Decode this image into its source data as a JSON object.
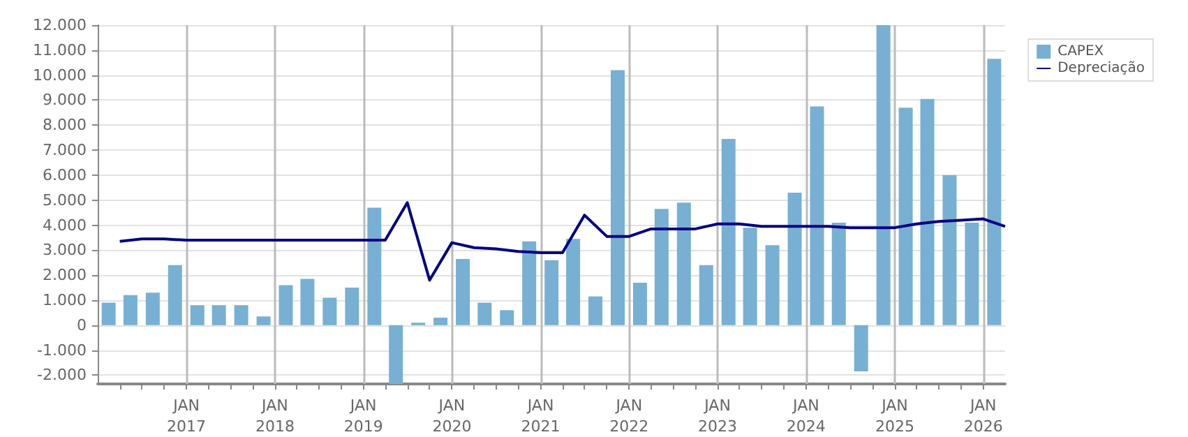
{
  "chart_data": {
    "type": "bar",
    "x": [
      "2016-02-15",
      "2016-05-15",
      "2016-08-15",
      "2016-11-15",
      "2017-02-15",
      "2017-05-15",
      "2017-08-15",
      "2017-11-15",
      "2018-02-15",
      "2018-05-15",
      "2018-08-15",
      "2018-11-15",
      "2019-02-15",
      "2019-05-15",
      "2019-08-15",
      "2019-11-15",
      "2020-02-15",
      "2020-05-15",
      "2020-08-15",
      "2020-11-15",
      "2021-02-15",
      "2021-05-15",
      "2021-08-15",
      "2021-11-15",
      "2022-02-15",
      "2022-05-15",
      "2022-08-15",
      "2022-11-15",
      "2023-02-15",
      "2023-05-15",
      "2023-08-15",
      "2023-11-15",
      "2024-02-15",
      "2024-05-15",
      "2024-08-15",
      "2024-11-15",
      "2025-02-15",
      "2025-05-15",
      "2025-08-15",
      "2025-11-15",
      "2026-02-15"
    ],
    "series": [
      {
        "name": "CAPEX",
        "color": "#77b0d3",
        "values": [
          900,
          1200,
          1300,
          2400,
          800,
          800,
          800,
          350,
          1600,
          1850,
          1100,
          1500,
          4700,
          -2350,
          100,
          300,
          2650,
          900,
          600,
          3350,
          2600,
          3450,
          1150,
          10200,
          1700,
          4650,
          4900,
          2400,
          7450,
          3900,
          3200,
          5300,
          8750,
          4100,
          -1850,
          12000,
          8700,
          9050,
          6000,
          4100,
          10650
        ]
      },
      {
        "name": "Depreciação",
        "type": "line",
        "color": "#000080",
        "x": [
          "2016-04-01",
          "2016-07-01",
          "2016-10-01",
          "2017-01-01",
          "2017-04-01",
          "2017-07-01",
          "2017-10-01",
          "2018-01-01",
          "2018-04-01",
          "2018-07-01",
          "2018-10-01",
          "2019-01-01",
          "2019-04-01",
          "2019-07-01",
          "2019-10-01",
          "2020-01-01",
          "2020-04-01",
          "2020-07-01",
          "2020-10-01",
          "2021-01-01",
          "2021-04-01",
          "2021-07-01",
          "2021-10-01",
          "2022-01-01",
          "2022-04-01",
          "2022-07-01",
          "2022-10-01",
          "2023-01-01",
          "2023-04-01",
          "2023-07-01",
          "2023-10-01",
          "2024-01-01",
          "2024-04-01",
          "2024-07-01",
          "2024-10-01",
          "2025-01-01",
          "2025-04-01",
          "2025-07-01",
          "2025-10-01",
          "2026-01-01",
          "2026-04-01"
        ],
        "values": [
          3350,
          3450,
          3450,
          3400,
          3400,
          3400,
          3400,
          3400,
          3400,
          3400,
          3400,
          3400,
          3400,
          4900,
          1800,
          3300,
          3100,
          3050,
          2950,
          2900,
          2900,
          4400,
          3550,
          3550,
          3850,
          3850,
          3850,
          4050,
          4050,
          3950,
          3950,
          3950,
          3950,
          3900,
          3900,
          3900,
          4050,
          4150,
          4200,
          4250,
          3950
        ]
      }
    ],
    "xlim": [
      "2016-01-01",
      "2026-04-01"
    ],
    "xticks": [
      {
        "value": "2016-04-01",
        "label": null
      },
      {
        "value": "2016-07-01",
        "label": null
      },
      {
        "value": "2016-10-01",
        "label": null
      },
      {
        "value": "2017-01-01",
        "label": "JAN\n2017"
      },
      {
        "value": "2017-04-01",
        "label": null
      },
      {
        "value": "2017-07-01",
        "label": null
      },
      {
        "value": "2017-10-01",
        "label": null
      },
      {
        "value": "2018-01-01",
        "label": "JAN\n2018"
      },
      {
        "value": "2018-04-01",
        "label": null
      },
      {
        "value": "2018-07-01",
        "label": null
      },
      {
        "value": "2018-10-01",
        "label": null
      },
      {
        "value": "2019-01-01",
        "label": "JAN\n2019"
      },
      {
        "value": "2019-04-01",
        "label": null
      },
      {
        "value": "2019-07-01",
        "label": null
      },
      {
        "value": "2019-10-01",
        "label": null
      },
      {
        "value": "2020-01-01",
        "label": "JAN\n2020"
      },
      {
        "value": "2020-04-01",
        "label": null
      },
      {
        "value": "2020-07-01",
        "label": null
      },
      {
        "value": "2020-10-01",
        "label": null
      },
      {
        "value": "2021-01-01",
        "label": "JAN\n2021"
      },
      {
        "value": "2021-04-01",
        "label": null
      },
      {
        "value": "2021-07-01",
        "label": null
      },
      {
        "value": "2021-10-01",
        "label": null
      },
      {
        "value": "2022-01-01",
        "label": "JAN\n2022"
      },
      {
        "value": "2022-04-01",
        "label": null
      },
      {
        "value": "2022-07-01",
        "label": null
      },
      {
        "value": "2022-10-01",
        "label": null
      },
      {
        "value": "2023-01-01",
        "label": "JAN\n2023"
      },
      {
        "value": "2023-04-01",
        "label": null
      },
      {
        "value": "2023-07-01",
        "label": null
      },
      {
        "value": "2023-10-01",
        "label": null
      },
      {
        "value": "2024-01-01",
        "label": "JAN\n2024"
      },
      {
        "value": "2024-04-01",
        "label": null
      },
      {
        "value": "2024-07-01",
        "label": null
      },
      {
        "value": "2024-10-01",
        "label": null
      },
      {
        "value": "2025-01-01",
        "label": "JAN\n2025"
      },
      {
        "value": "2025-04-01",
        "label": null
      },
      {
        "value": "2025-07-01",
        "label": null
      },
      {
        "value": "2025-10-01",
        "label": null
      },
      {
        "value": "2026-01-01",
        "label": "JAN\n2026"
      }
    ],
    "ylim": [
      -2350,
      12000
    ],
    "yticks": [
      {
        "value": -2000,
        "label": "-2.000"
      },
      {
        "value": -1000,
        "label": "-1.000"
      },
      0,
      {
        "value": 1000,
        "label": "1.000"
      },
      {
        "value": 2000,
        "label": "2.000"
      },
      {
        "value": 3000,
        "label": "3.000"
      },
      {
        "value": 4000,
        "label": "4.000"
      },
      {
        "value": 5000,
        "label": "5.000"
      },
      {
        "value": 6000,
        "label": "6.000"
      },
      {
        "value": 7000,
        "label": "7.000"
      },
      {
        "value": 8000,
        "label": "8.000"
      },
      {
        "value": 9000,
        "label": "9.000"
      },
      {
        "value": 10000,
        "label": "10.000"
      },
      {
        "value": 11000,
        "label": "11.000"
      },
      {
        "value": 12000,
        "label": "12.000"
      }
    ],
    "grid": true,
    "legend": "top right",
    "marker": "none"
  }
}
